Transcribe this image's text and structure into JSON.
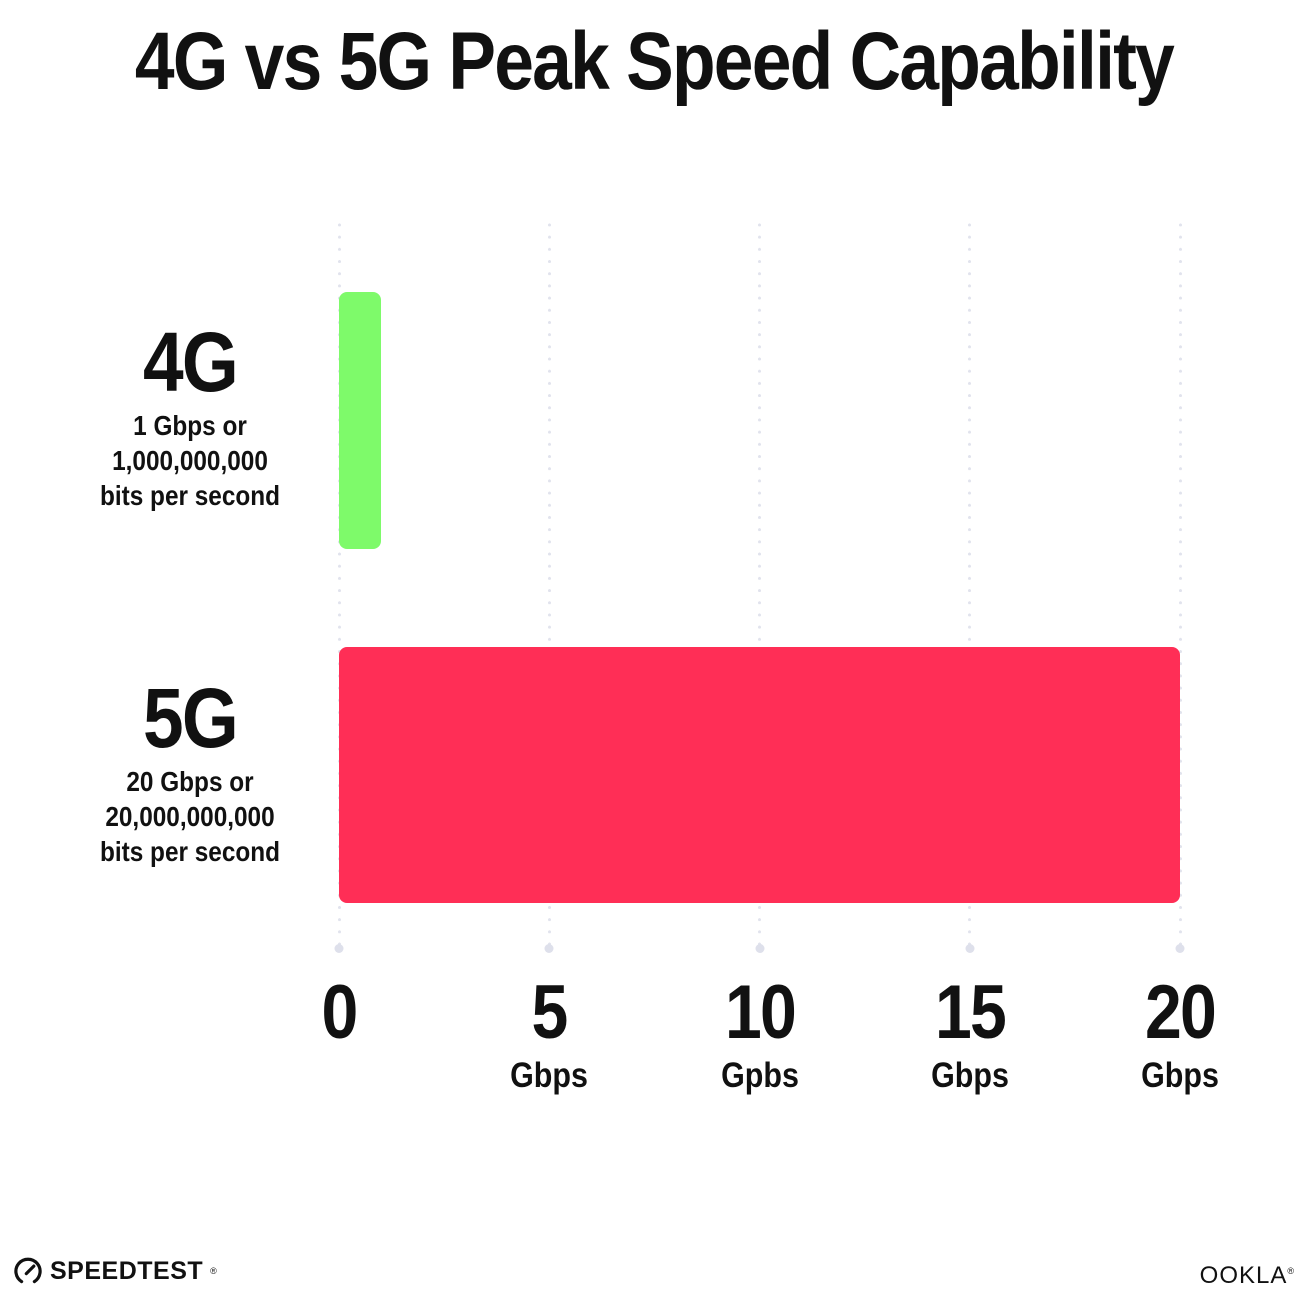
{
  "chart_data": {
    "type": "bar",
    "orientation": "horizontal",
    "title": "4G vs 5G Peak Speed Capability",
    "categories": [
      "4G",
      "5G"
    ],
    "values": [
      1,
      20
    ],
    "value_unit": "Gbps",
    "xlim": [
      0,
      20
    ],
    "grid": "dotted-vertical-gridlines",
    "legend": "none",
    "bars": [
      {
        "label": "4G",
        "sublabel_lines": [
          "1 Gbps or",
          "1,000,000,000",
          "bits per second"
        ],
        "value": 1,
        "color": "#7EFA6A"
      },
      {
        "label": "5G",
        "sublabel_lines": [
          "20 Gbps or",
          "20,000,000,000",
          "bits per second"
        ],
        "value": 20,
        "color": "#FF2E56"
      }
    ],
    "x_ticks": [
      {
        "number": "0",
        "unit": ""
      },
      {
        "number": "5",
        "unit": "Gbps"
      },
      {
        "number": "10",
        "unit": "Gpbs"
      },
      {
        "number": "15",
        "unit": "Gbps"
      },
      {
        "number": "20",
        "unit": "Gbps"
      }
    ]
  },
  "footer": {
    "speedtest_label": "SPEEDTEST",
    "speedtest_trademark": "®",
    "ookla_label": "OOKLA",
    "ookla_trademark": "®"
  },
  "colors": {
    "bar_4g": "#7EFA6A",
    "bar_5g": "#FF2E56",
    "grid_dot": "#E1E3ED",
    "grid_end_dot": "#DEE0EB",
    "text": "#111111",
    "background": "#FFFFFF"
  }
}
